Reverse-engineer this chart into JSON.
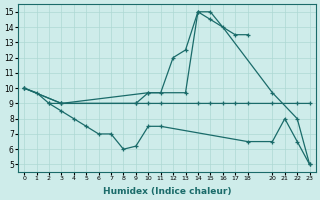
{
  "xlabel": "Humidex (Indice chaleur)",
  "bg_color": "#ceecea",
  "grid_color": "#aed8d4",
  "line_color": "#1a6b6a",
  "xlim": [
    -0.5,
    23.5
  ],
  "ylim": [
    4.5,
    15.5
  ],
  "xticks": [
    0,
    1,
    2,
    3,
    4,
    5,
    6,
    7,
    8,
    9,
    10,
    11,
    12,
    13,
    14,
    15,
    16,
    17,
    18,
    20,
    21,
    22,
    23
  ],
  "yticks": [
    5,
    6,
    7,
    8,
    9,
    10,
    11,
    12,
    13,
    14,
    15
  ],
  "lines": [
    {
      "x": [
        0,
        1,
        2,
        3,
        9,
        10,
        11,
        12,
        13,
        14,
        15,
        17,
        18
      ],
      "y": [
        10,
        9.7,
        9,
        9,
        9,
        9.7,
        9.7,
        12,
        12.5,
        15,
        14.5,
        13.5,
        13.5
      ]
    },
    {
      "x": [
        0,
        3,
        10,
        13,
        14,
        15,
        16,
        20,
        22,
        23
      ],
      "y": [
        10,
        9,
        9.7,
        9.7,
        15,
        15,
        14,
        9.7,
        8,
        5
      ]
    },
    {
      "x": [
        2,
        3,
        4,
        5,
        6,
        7,
        8,
        9,
        10,
        11,
        18,
        20,
        21,
        22,
        23
      ],
      "y": [
        9,
        8.5,
        8,
        7.5,
        7,
        7,
        6,
        6.2,
        7.5,
        7.5,
        6.5,
        6.5,
        8,
        6.5,
        5
      ]
    },
    {
      "x": [
        0,
        3,
        9,
        10,
        11,
        14,
        15,
        16,
        17,
        18,
        20,
        22,
        23
      ],
      "y": [
        10,
        9,
        9,
        9,
        9,
        9,
        9,
        9,
        9,
        9,
        9,
        9,
        9
      ]
    }
  ]
}
